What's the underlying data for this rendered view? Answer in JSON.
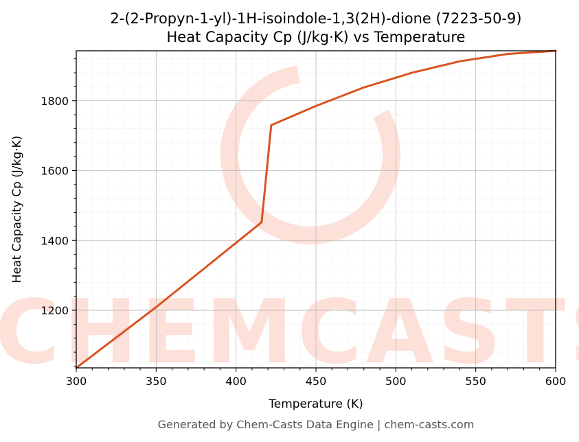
{
  "chart_data": {
    "type": "line",
    "title": "2-(2-Propyn-1-yl)-1H-isoindole-1,3(2H)-dione (7223-50-9)",
    "subtitle": "Heat Capacity Cp (J/kg·K) vs Temperature",
    "xlabel": "Temperature (K)",
    "ylabel": "Heat Capacity Cp (J/kg·K)",
    "xlim": [
      300,
      600
    ],
    "ylim": [
      1035,
      1943
    ],
    "xticks": [
      300,
      350,
      400,
      450,
      500,
      550,
      600
    ],
    "yticks": [
      1200,
      1400,
      1600,
      1800
    ],
    "grid": true,
    "series": [
      {
        "color": "#d95323",
        "x": [
          300,
          350,
          400,
          416,
          422,
          450,
          480,
          510,
          540,
          570,
          600
        ],
        "y": [
          1035,
          1209,
          1393,
          1452,
          1730,
          1785,
          1838,
          1880,
          1913,
          1934,
          1943
        ]
      }
    ]
  },
  "watermark": {
    "text": "CHEMCASTS"
  },
  "footer": "Generated by Chem-Casts Data Engine | chem-casts.com"
}
